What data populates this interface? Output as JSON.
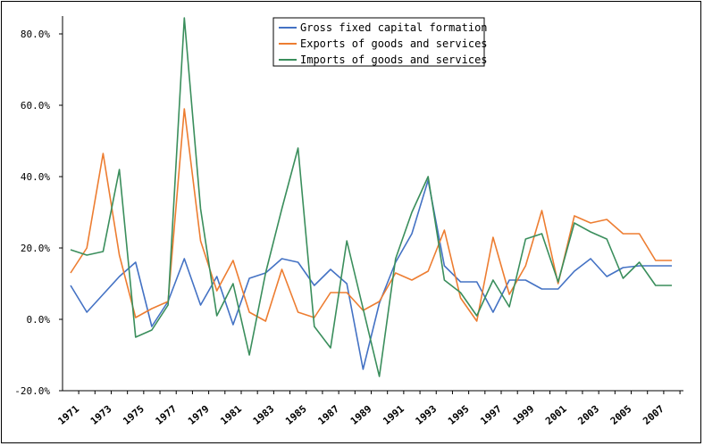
{
  "chart_data": {
    "type": "line",
    "title": "",
    "xlabel": "",
    "ylabel": "",
    "ylim": [
      -20,
      85
    ],
    "y_ticks": [
      -20,
      0,
      20,
      40,
      60,
      80
    ],
    "y_tick_labels": [
      "-20.0%",
      "0.0%",
      "20.0%",
      "40.0%",
      "60.0%",
      "80.0%"
    ],
    "grid": false,
    "legend_position": "top-center",
    "x": [
      1971,
      1972,
      1973,
      1974,
      1975,
      1976,
      1977,
      1978,
      1979,
      1980,
      1981,
      1982,
      1983,
      1984,
      1985,
      1986,
      1987,
      1988,
      1989,
      1990,
      1991,
      1992,
      1993,
      1994,
      1995,
      1996,
      1997,
      1998,
      1999,
      2000,
      2001,
      2002,
      2003,
      2004,
      2005,
      2006,
      2007,
      2008
    ],
    "x_tick_labels": [
      "1971",
      "1973",
      "1975",
      "1977",
      "1979",
      "1981",
      "1983",
      "1985",
      "1987",
      "1989",
      "1991",
      "1993",
      "1995",
      "1997",
      "1999",
      "2001",
      "2003",
      "2005",
      "2007"
    ],
    "series": [
      {
        "name": "Gross fixed capital formation",
        "color": "#4472C4",
        "values": [
          9.5,
          2,
          7,
          12,
          16,
          -2,
          5,
          17,
          4,
          12,
          -1.5,
          11.5,
          13,
          17,
          16,
          9.5,
          14,
          10,
          -14,
          4.5,
          16,
          24,
          39,
          15,
          10.5,
          10.5,
          2,
          11,
          11,
          8.5,
          8.5,
          13.5,
          17,
          12,
          14.5,
          15,
          15,
          15
        ]
      },
      {
        "name": "Exports of goods and services",
        "color": "#ED7D31",
        "values": [
          13,
          20,
          46.5,
          18,
          0.5,
          3,
          5,
          59,
          22,
          8,
          16.5,
          2,
          -0.5,
          14,
          2,
          0.5,
          7.5,
          7.5,
          2.5,
          5,
          13,
          11,
          13.5,
          25,
          6,
          -0.5,
          23,
          7,
          15,
          30.5,
          10,
          29,
          27,
          28,
          24,
          24,
          16.5,
          16.5
        ]
      },
      {
        "name": "Imports of goods and services",
        "color": "#3A8E5C",
        "values": [
          19.5,
          18,
          19,
          42,
          -5,
          -3,
          4,
          84.5,
          31,
          1,
          10,
          -10,
          13,
          31,
          48,
          -2,
          -8,
          22,
          3,
          -16,
          17,
          30,
          40,
          11,
          7.5,
          1,
          11,
          3.5,
          22.5,
          24,
          10.5,
          27,
          24.5,
          22.5,
          11.5,
          16,
          9.5,
          9.5
        ]
      }
    ]
  }
}
